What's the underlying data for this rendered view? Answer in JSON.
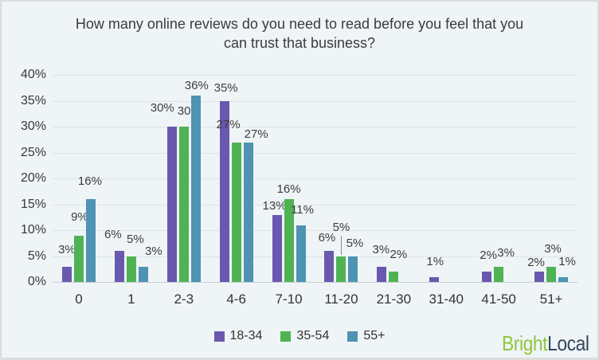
{
  "title": "How many online reviews do you need to read before you feel that you can trust that business?",
  "branding": {
    "logo_part_green": "Bright",
    "logo_part_dark": "Local",
    "logo_green_color": "#8FC73E",
    "logo_dark_color": "#33475C"
  },
  "colors": {
    "background": "#EFF4F7",
    "frame_border": "#DADCDD",
    "gridline": "#DDE4E8",
    "axis_baseline": "#C7CDD1",
    "text": "#3B3B3B"
  },
  "chart_data": {
    "type": "bar",
    "title": "How many online reviews do you need to read before you feel that you can trust that business?",
    "categories": [
      "0",
      "1",
      "2-3",
      "4-6",
      "7-10",
      "11-20",
      "21-30",
      "31-40",
      "41-50",
      "51+"
    ],
    "series": [
      {
        "name": "18-34",
        "color": "#6A58AE",
        "values": [
          3,
          6,
          30,
          35,
          13,
          6,
          3,
          1,
          2,
          2
        ]
      },
      {
        "name": "35-54",
        "color": "#4FB354",
        "values": [
          9,
          5,
          30,
          27,
          16,
          5,
          2,
          0,
          3,
          3
        ]
      },
      {
        "name": "55+",
        "color": "#4E93B2",
        "values": [
          16,
          3,
          36,
          27,
          11,
          5,
          0,
          0,
          0,
          1
        ]
      }
    ],
    "xlabel": "",
    "ylabel": "",
    "ylim": [
      0,
      40
    ],
    "ytick_step": 5,
    "ytick_labels": [
      "0%",
      "5%",
      "10%",
      "15%",
      "20%",
      "25%",
      "30%",
      "35%",
      "40%"
    ],
    "value_suffix": "%",
    "grid": true,
    "legend_position": "bottom",
    "data_labels_shown": true
  }
}
